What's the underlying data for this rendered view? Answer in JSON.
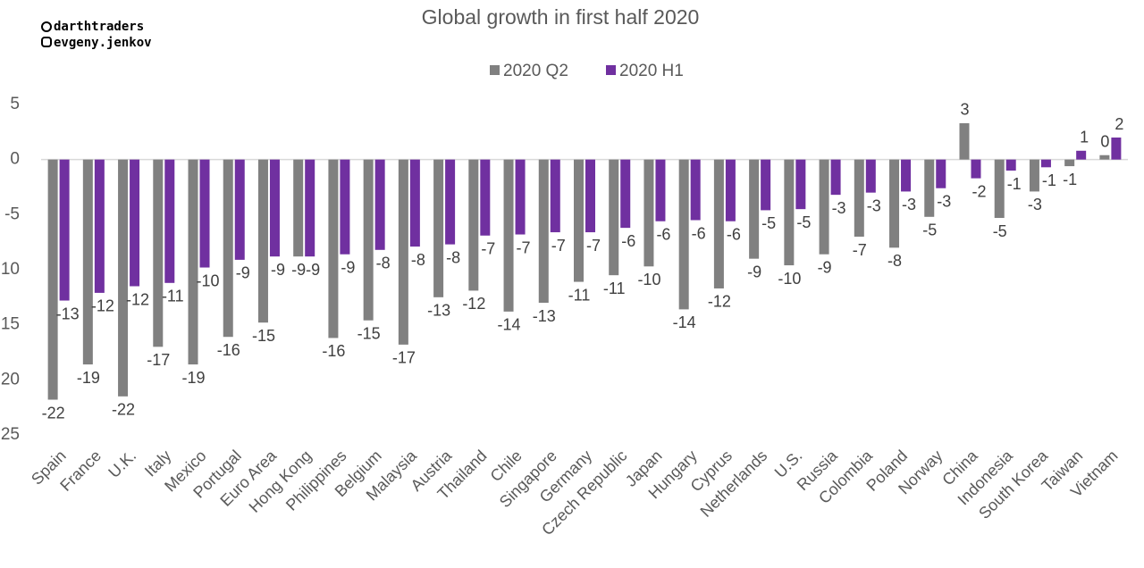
{
  "watermark": [
    "darthtraders",
    "evgeny.jenkov"
  ],
  "chart_data": {
    "type": "bar",
    "title": "Global growth in first half 2020",
    "categories": [
      "Spain",
      "France",
      "U.K.",
      "Italy",
      "Mexico",
      "Portugal",
      "Euro Area",
      "Hong Kong",
      "Philippines",
      "Belgium",
      "Malaysia",
      "Austria",
      "Thailand",
      "Chile",
      "Singapore",
      "Germany",
      "Czech Republic",
      "Japan",
      "Hungary",
      "Cyprus",
      "Netherlands",
      "U.S.",
      "Russia",
      "Colombia",
      "Poland",
      "Norway",
      "China",
      "Indonesia",
      "South Korea",
      "Taiwan",
      "Vietnam"
    ],
    "series": [
      {
        "name": "2020 Q2",
        "color": "#808080",
        "values": [
          -21.8,
          -18.6,
          -21.5,
          -17.0,
          -18.6,
          -16.1,
          -14.8,
          -8.8,
          -16.2,
          -14.6,
          -16.8,
          -12.5,
          -11.9,
          -13.8,
          -13.0,
          -11.1,
          -10.5,
          -9.7,
          -13.6,
          -11.7,
          -9.0,
          -9.6,
          -8.6,
          -7.0,
          -8.0,
          -5.2,
          3.3,
          -5.3,
          -2.9,
          -0.6,
          0.4
        ],
        "value_labels": [
          "-22",
          "-19",
          "-22",
          "-17",
          "-19",
          "-16",
          "-15",
          "-9",
          "-16",
          "-15",
          "-17",
          "-13",
          "-12",
          "-14",
          "-13",
          "-11",
          "-11",
          "-10",
          "-14",
          "-12",
          "-9",
          "-10",
          "-9",
          "-7",
          "-8",
          "-5",
          "3",
          "-5",
          "-3",
          "-1",
          "0"
        ]
      },
      {
        "name": "2020 H1",
        "color": "#7030a0",
        "values": [
          -12.8,
          -12.1,
          -11.5,
          -11.2,
          -9.8,
          -9.1,
          -8.8,
          -8.8,
          -8.6,
          -8.2,
          -7.9,
          -7.7,
          -6.9,
          -6.8,
          -6.6,
          -6.6,
          -6.2,
          -5.6,
          -5.5,
          -5.6,
          -4.6,
          -4.5,
          -3.2,
          -3.0,
          -2.9,
          -2.6,
          -1.7,
          -1.0,
          -0.7,
          0.8,
          2.0
        ],
        "value_labels": [
          "-13",
          "-12",
          "-12",
          "-11",
          "-10",
          "-9",
          "-9",
          "-9",
          "-9",
          "-8",
          "-8",
          "-8",
          "-7",
          "-7",
          "-7",
          "-7",
          "-6",
          "-6",
          "-6",
          "-6",
          "-5",
          "-5",
          "-3",
          "-3",
          "-3",
          "-3",
          "-2",
          "-1",
          "-1",
          "1",
          "2"
        ]
      }
    ],
    "ylim": [
      -25,
      5
    ],
    "yticks": [
      5,
      0,
      -5,
      {
        "value": -10,
        "label": "10"
      },
      {
        "value": -15,
        "label": "15"
      },
      {
        "value": -20,
        "label": "20"
      },
      {
        "value": -25,
        "label": "25"
      }
    ],
    "legend": "top",
    "grid": false
  }
}
